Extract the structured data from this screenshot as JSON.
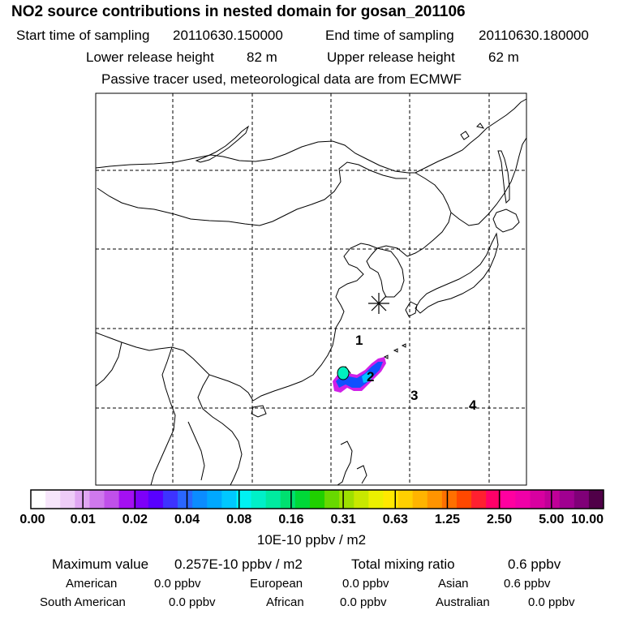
{
  "header": {
    "title": "NO2 source contributions in nested domain for gosan_201106",
    "start_label": "Start time of sampling",
    "start_value": "20110630.150000",
    "end_label": "End time of sampling",
    "end_value": "20110630.180000",
    "lower_label": "Lower release height",
    "lower_value": "82 m",
    "upper_label": "Upper release height",
    "upper_value": "62 m",
    "note": "Passive tracer used, meteorological data are from ECMWF"
  },
  "map": {
    "region_labels": [
      "1",
      "2",
      "3",
      "4"
    ],
    "station_marker": "asterisk",
    "grid": "dashed"
  },
  "colorbar": {
    "colors": [
      "#ffffff",
      "#f7e6fb",
      "#eeccf7",
      "#e0a6f2",
      "#cf78ed",
      "#c050ea",
      "#a410f2",
      "#7d00f8",
      "#5800ff",
      "#3d33ff",
      "#2a66ff",
      "#0b8cff",
      "#00a8ff",
      "#00c8ff",
      "#00f2f2",
      "#00f0c8",
      "#00eaa0",
      "#00e070",
      "#00d838",
      "#20d000",
      "#68d800",
      "#9ee000",
      "#c8e800",
      "#ecf000",
      "#ffe800",
      "#ffd000",
      "#ffb400",
      "#ff9400",
      "#ff7000",
      "#ff4800",
      "#ff2030",
      "#ff0068",
      "#ff00a0",
      "#f000a8",
      "#d800a0",
      "#c00098",
      "#a00090",
      "#800078",
      "#500048"
    ],
    "tick_labels": [
      "0.00",
      "0.01",
      "0.02",
      "0.04",
      "0.08",
      "0.16",
      "0.31",
      "0.63",
      "1.25",
      "2.50",
      "5.00",
      "10.00"
    ],
    "unit": "10E-10 ppbv / m2"
  },
  "summary": {
    "max_label": "Maximum value",
    "max_value": "0.257E-10 ppbv / m2",
    "total_label": "Total mixing ratio",
    "total_value": "0.6 ppbv",
    "regions": [
      {
        "name": "American",
        "value": "0.0 ppbv"
      },
      {
        "name": "European",
        "value": "0.0 ppbv"
      },
      {
        "name": "Asian",
        "value": "0.6 ppbv"
      },
      {
        "name": "South American",
        "value": "0.0 ppbv"
      },
      {
        "name": "African",
        "value": "0.0 ppbv"
      },
      {
        "name": "Australian",
        "value": "0.0 ppbv"
      }
    ]
  }
}
